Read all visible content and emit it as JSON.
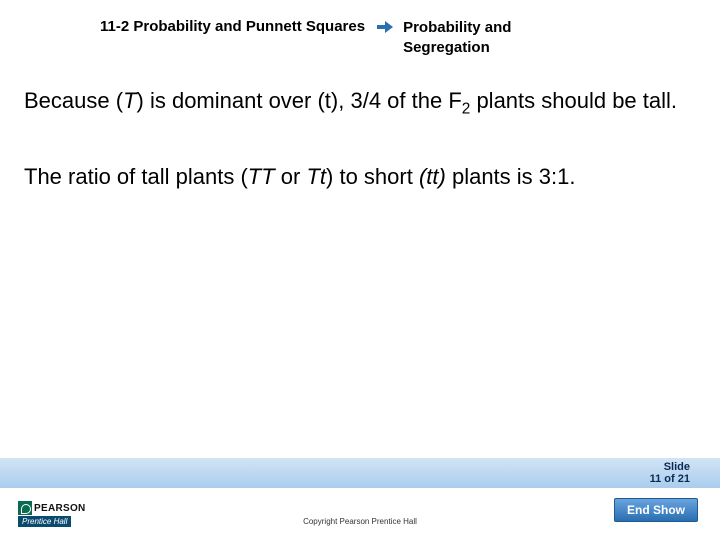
{
  "header": {
    "section_title": "11-2 Probability and Punnett Squares",
    "subtitle": "Probability and Segregation",
    "arrow_color": "#2a6fb0"
  },
  "content": {
    "para1_pre": "Because (",
    "para1_t1": "T",
    "para1_mid1": ") is dominant over (t), 3/4 of the F",
    "para1_sub": "2",
    "para1_post": " plants should be tall.",
    "para2_pre": "The ratio of tall plants (",
    "para2_tt": "TT",
    "para2_mid1": " or ",
    "para2_tt2": "Tt",
    "para2_mid2": ") to short ",
    "para2_tt3": "(tt)",
    "para2_post": " plants is 3:1."
  },
  "slide_bar": {
    "label_line1": "Slide",
    "label_line2_pre": "11",
    "label_line2_mid": " of ",
    "label_line2_post": "21",
    "bg_gradient_top": "#d2e4f5",
    "bg_gradient_bottom": "#a9cdee"
  },
  "footer": {
    "pearson": "PEARSON",
    "prentice": "Prentice Hall",
    "copyright": "Copyright Pearson Prentice Hall",
    "end_show": "End Show"
  },
  "colors": {
    "text": "#000000",
    "bg": "#ffffff",
    "button_top": "#6aa3e0",
    "button_bottom": "#2a6fb0"
  }
}
